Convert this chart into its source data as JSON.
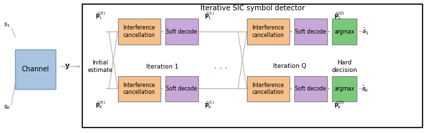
{
  "title": "Iterative SIC symbol detector",
  "bg_color": "#ffffff",
  "channel_color": "#a8c4e0",
  "orange_color": "#f5c08a",
  "purple_color": "#c8a8d8",
  "green_color": "#7ac87a",
  "iter1_label": "Iteration 1",
  "iterQ_label": "Iteration Q",
  "hard_decision_label": "Hard\ndecision",
  "initial_estimate_label": "Initial\nestimate",
  "dots": ". . ."
}
